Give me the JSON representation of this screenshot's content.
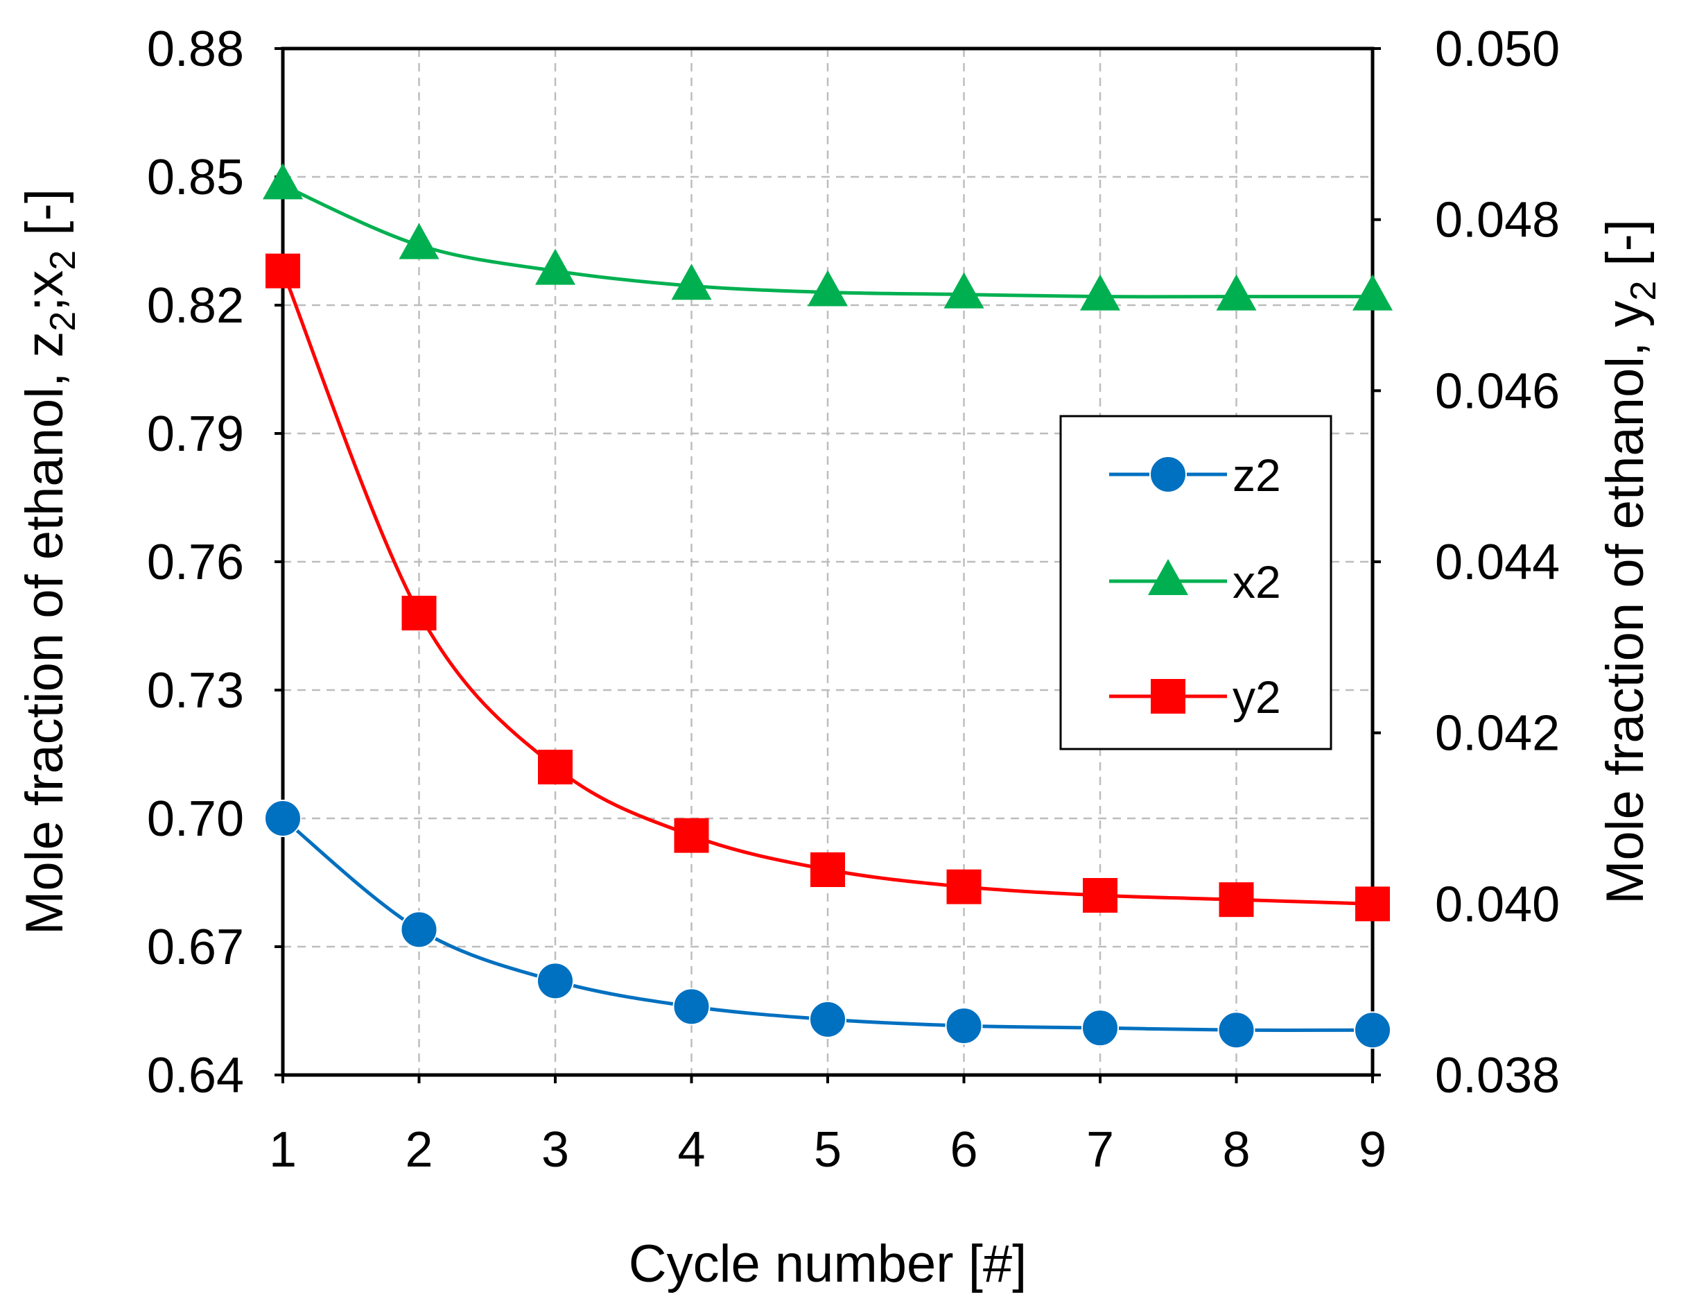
{
  "chart_data": {
    "type": "line",
    "title": "",
    "xlabel": "Cycle number [#]",
    "ylabel_left": {
      "prefix": "Mole fraction of ethanol, ",
      "parts": [
        {
          "text": "z",
          "sub": "2"
        },
        {
          "text": ";x",
          "sub": "2"
        },
        {
          "text": " [-]",
          "sub": ""
        }
      ]
    },
    "ylabel_right": {
      "prefix": "Mole fraction of ethanol, ",
      "parts": [
        {
          "text": "y",
          "sub": "2"
        },
        {
          "text": " [-]",
          "sub": ""
        }
      ]
    },
    "x": [
      1,
      2,
      3,
      4,
      5,
      6,
      7,
      8,
      9
    ],
    "xlim": [
      1,
      9
    ],
    "x_ticks": [
      "1",
      "2",
      "3",
      "4",
      "5",
      "6",
      "7",
      "8",
      "9"
    ],
    "ylim_left": [
      0.64,
      0.88
    ],
    "y_ticks_left": [
      "0.64",
      "0.67",
      "0.70",
      "0.73",
      "0.76",
      "0.79",
      "0.82",
      "0.85",
      "0.88"
    ],
    "ylim_right": [
      0.038,
      0.05
    ],
    "y_ticks_right": [
      "0.038",
      "0.040",
      "0.042",
      "0.044",
      "0.046",
      "0.048",
      "0.050"
    ],
    "grid": true,
    "legend_position": "center-right",
    "series": [
      {
        "name": "z2",
        "axis": "left",
        "color": "#0070C0",
        "marker": "circle",
        "values": [
          0.7,
          0.674,
          0.662,
          0.656,
          0.653,
          0.6515,
          0.651,
          0.6505,
          0.6505
        ]
      },
      {
        "name": "x2",
        "axis": "left",
        "color": "#00B050",
        "marker": "triangle",
        "values": [
          0.848,
          0.834,
          0.828,
          0.8245,
          0.823,
          0.8225,
          0.822,
          0.822,
          0.822
        ]
      },
      {
        "name": "y2",
        "axis": "right",
        "color": "#FF0000",
        "marker": "square",
        "values": [
          0.0474,
          0.0434,
          0.0416,
          0.0408,
          0.0404,
          0.0402,
          0.0401,
          0.04005,
          0.04
        ]
      }
    ]
  }
}
